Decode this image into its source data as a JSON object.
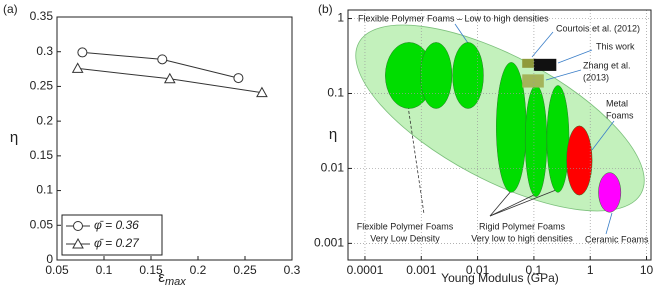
{
  "chart_data": [
    {
      "type": "line",
      "panel_label": "(a)",
      "y_label": "η",
      "x_label": "ε",
      "x_label_sub": "max",
      "xlim": [
        0.05,
        0.3
      ],
      "xticks": [
        0.05,
        0.1,
        0.15,
        0.2,
        0.25,
        0.3
      ],
      "ylim": [
        0,
        0.35
      ],
      "yticks": [
        0,
        0.05,
        0.1,
        0.15,
        0.2,
        0.25,
        0.3,
        0.35
      ],
      "grid": false,
      "legend": "bottom-left",
      "series": [
        {
          "name": "φ̄ = 0.36",
          "color": "#333333",
          "marker": "circle",
          "x": [
            0.077,
            0.162,
            0.243
          ],
          "values": [
            0.299,
            0.289,
            0.262
          ]
        },
        {
          "name": "φ̄ = 0.27",
          "color": "#333333",
          "marker": "triangle",
          "x": [
            0.072,
            0.17,
            0.268
          ],
          "values": [
            0.276,
            0.261,
            0.241
          ]
        }
      ]
    },
    {
      "type": "ellipse",
      "panel_label": "(b)",
      "y_label": "η",
      "x_label": "Young Modulus (GPa)",
      "log_x": true,
      "log_y": true,
      "grid": true,
      "xlim": [
        5e-05,
        12
      ],
      "xticks": [
        0.0001,
        0.001,
        0.01,
        0.1,
        1,
        10
      ],
      "ylim": [
        0.0006,
        1.3
      ],
      "yticks": [
        0.001,
        0.01,
        0.1,
        1
      ],
      "ellipses": [
        {
          "x": [
            0.00023,
            0.0016
          ],
          "y": [
            0.063,
            0.48
          ],
          "color": "#00dd00"
        },
        {
          "x": [
            0.00096,
            0.0035
          ],
          "y": [
            0.063,
            0.48
          ],
          "color": "#00dd00"
        },
        {
          "x": [
            0.0036,
            0.0127
          ],
          "y": [
            0.063,
            0.48
          ],
          "color": "#00dd00"
        },
        {
          "x": [
            0.0215,
            0.073
          ],
          "y": [
            0.0048,
            0.26
          ],
          "color": "#00dd00"
        },
        {
          "x": [
            0.07,
            0.17
          ],
          "y": [
            0.0042,
            0.128
          ],
          "color": "#00dd00"
        },
        {
          "x": [
            0.17,
            0.42
          ],
          "y": [
            0.0048,
            0.128
          ],
          "color": "#00dd00"
        },
        {
          "x": [
            0.38,
            1.08
          ],
          "y": [
            0.0044,
            0.037
          ],
          "color": "#ff0000"
        },
        {
          "x": [
            1.4,
            3.5
          ],
          "y": [
            0.0026,
            0.0088
          ],
          "color": "#ff00ff"
        }
      ],
      "boxes": [
        {
          "x": [
            0.062,
            0.11
          ],
          "y": [
            0.22,
            0.29
          ],
          "color": "#8f9a3c"
        },
        {
          "x": [
            0.1,
            0.25
          ],
          "y": [
            0.2,
            0.29
          ],
          "color": "#111111"
        },
        {
          "x": [
            0.062,
            0.15
          ],
          "y": [
            0.12,
            0.18
          ],
          "color": "#a4b45a"
        }
      ],
      "annotations": [
        [
          "Flexible Polymer Foams – Low to high densities"
        ],
        [
          "Courtois et al. (2012)"
        ],
        [
          "This work"
        ],
        [
          "Zhang et al.",
          "(2013)"
        ],
        [
          "Metal",
          "Foams"
        ],
        [
          "Flexible Polymer Foams",
          "Very Low Density"
        ],
        [
          "Rigid Polymer Foams",
          "Very low to high densities"
        ],
        [
          "Ceramic Foams"
        ]
      ]
    }
  ]
}
